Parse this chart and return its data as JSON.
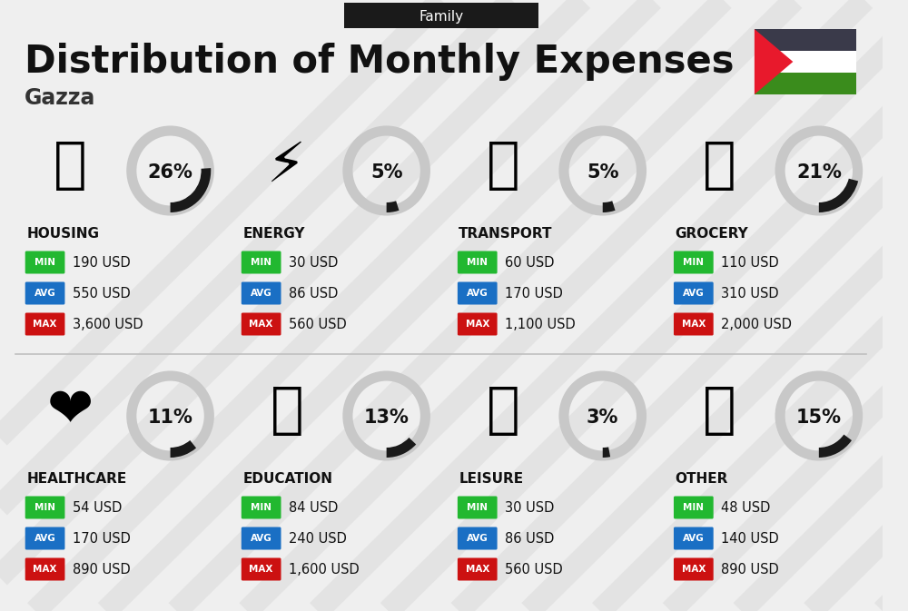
{
  "title": "Distribution of Monthly Expenses",
  "subtitle": "Gazza",
  "family_label": "Family",
  "bg_color": "#efefef",
  "categories": [
    {
      "name": "HOUSING",
      "pct": 26,
      "min": "190 USD",
      "avg": "550 USD",
      "max": "3,600 USD",
      "icon": "🏢",
      "col": 0,
      "row": 0
    },
    {
      "name": "ENERGY",
      "pct": 5,
      "min": "30 USD",
      "avg": "86 USD",
      "max": "560 USD",
      "icon": "⚡",
      "col": 1,
      "row": 0
    },
    {
      "name": "TRANSPORT",
      "pct": 5,
      "min": "60 USD",
      "avg": "170 USD",
      "max": "1,100 USD",
      "icon": "🚌",
      "col": 2,
      "row": 0
    },
    {
      "name": "GROCERY",
      "pct": 21,
      "min": "110 USD",
      "avg": "310 USD",
      "max": "2,000 USD",
      "icon": "🛒",
      "col": 3,
      "row": 0
    },
    {
      "name": "HEALTHCARE",
      "pct": 11,
      "min": "54 USD",
      "avg": "170 USD",
      "max": "890 USD",
      "icon": "❤️",
      "col": 0,
      "row": 1
    },
    {
      "name": "EDUCATION",
      "pct": 13,
      "min": "84 USD",
      "avg": "240 USD",
      "max": "1,600 USD",
      "icon": "🎓",
      "col": 1,
      "row": 1
    },
    {
      "name": "LEISURE",
      "pct": 3,
      "min": "30 USD",
      "avg": "86 USD",
      "max": "560 USD",
      "icon": "🛍️",
      "col": 2,
      "row": 1
    },
    {
      "name": "OTHER",
      "pct": 15,
      "min": "48 USD",
      "avg": "140 USD",
      "max": "890 USD",
      "icon": "💰",
      "col": 3,
      "row": 1
    }
  ],
  "min_color": "#22b830",
  "avg_color": "#1a6fc4",
  "max_color": "#cc1111",
  "circle_bg": "#c8c8c8",
  "circle_filled": "#1a1a1a",
  "flag_colors": {
    "black": "#3a3a4a",
    "white": "#ffffff",
    "green": "#3a8c1c",
    "red": "#e8192c"
  },
  "stripe_color": "#d8d8d8",
  "header_bg": "#1a1a1a",
  "title_color": "#111111",
  "subtitle_color": "#333333",
  "cat_name_color": "#111111",
  "val_color": "#111111"
}
